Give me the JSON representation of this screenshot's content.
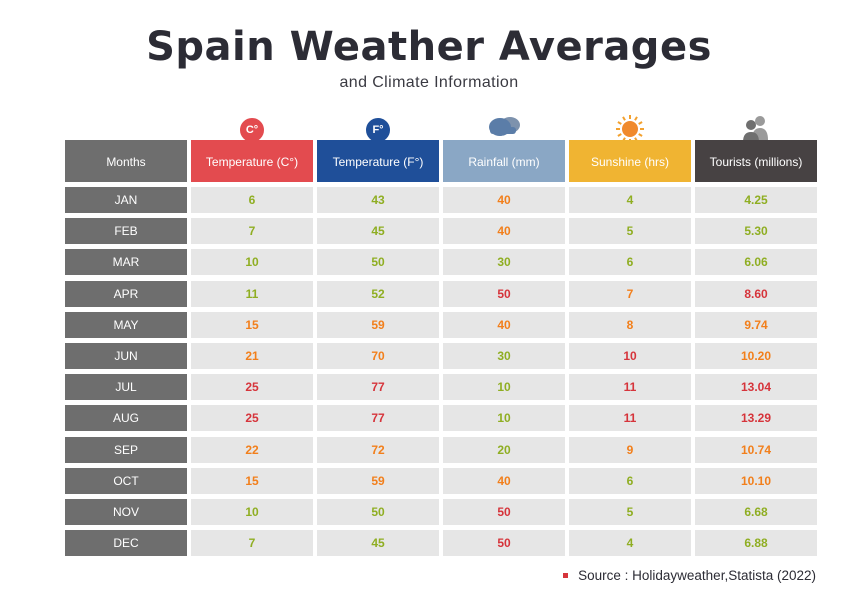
{
  "title": "Spain Weather Averages",
  "subtitle": "and Climate Information",
  "source": "Source : Holidayweather,Statista (2022)",
  "colors": {
    "green": "#8fae22",
    "orange": "#f27f1b",
    "red": "#d6343b",
    "months_bg": "#6e6e6e",
    "temp_c_bg": "#e34b4f",
    "temp_f_bg": "#1f4f99",
    "rain_bg": "#8aa7c5",
    "sun_bg": "#f0b432",
    "tourists_bg": "#474243"
  },
  "chart_data": {
    "type": "table",
    "columns": [
      "Months",
      "Temperature (C°)",
      "Temperature (F°)",
      "Rainfall (mm)",
      "Sunshine (hrs)",
      "Tourists (millions)"
    ],
    "header_icons": [
      "",
      "C°",
      "F°",
      "cloud-rain-icon",
      "sun-icon",
      "people-icon"
    ],
    "rows": [
      [
        "JAN",
        "6",
        "43",
        "40",
        "4",
        "4.25"
      ],
      [
        "FEB",
        "7",
        "45",
        "40",
        "5",
        "5.30"
      ],
      [
        "MAR",
        "10",
        "50",
        "30",
        "6",
        "6.06"
      ],
      [
        "APR",
        "11",
        "52",
        "50",
        "7",
        "8.60"
      ],
      [
        "MAY",
        "15",
        "59",
        "40",
        "8",
        "9.74"
      ],
      [
        "JUN",
        "21",
        "70",
        "30",
        "10",
        "10.20"
      ],
      [
        "JUL",
        "25",
        "77",
        "10",
        "11",
        "13.04"
      ],
      [
        "AUG",
        "25",
        "77",
        "10",
        "11",
        "13.29"
      ],
      [
        "SEP",
        "22",
        "72",
        "20",
        "9",
        "10.74"
      ],
      [
        "OCT",
        "15",
        "59",
        "40",
        "6",
        "10.10"
      ],
      [
        "NOV",
        "10",
        "50",
        "50",
        "5",
        "6.68"
      ],
      [
        "DEC",
        "7",
        "45",
        "50",
        "4",
        "6.88"
      ]
    ],
    "value_colors": [
      [
        null,
        "green",
        "green",
        "orange",
        "green",
        "green"
      ],
      [
        null,
        "green",
        "green",
        "orange",
        "green",
        "green"
      ],
      [
        null,
        "green",
        "green",
        "green",
        "green",
        "green"
      ],
      [
        null,
        "green",
        "green",
        "red",
        "orange",
        "red"
      ],
      [
        null,
        "orange",
        "orange",
        "orange",
        "orange",
        "orange"
      ],
      [
        null,
        "orange",
        "orange",
        "green",
        "red",
        "orange"
      ],
      [
        null,
        "red",
        "red",
        "green",
        "red",
        "red"
      ],
      [
        null,
        "red",
        "red",
        "green",
        "red",
        "red"
      ],
      [
        null,
        "orange",
        "orange",
        "green",
        "orange",
        "orange"
      ],
      [
        null,
        "orange",
        "orange",
        "orange",
        "green",
        "orange"
      ],
      [
        null,
        "green",
        "green",
        "red",
        "green",
        "green"
      ],
      [
        null,
        "green",
        "green",
        "red",
        "green",
        "green"
      ]
    ]
  }
}
